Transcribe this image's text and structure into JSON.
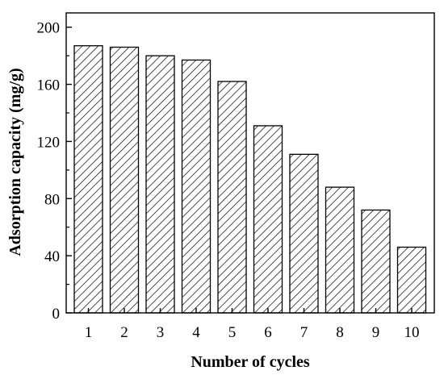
{
  "chart_data": {
    "type": "bar",
    "title": "",
    "xlabel": "Number of cycles",
    "ylabel": "Adsorption capacity (mg/g)",
    "categories": [
      "1",
      "2",
      "3",
      "4",
      "5",
      "6",
      "7",
      "8",
      "9",
      "10"
    ],
    "values": [
      187,
      186,
      180,
      177,
      162,
      131,
      111,
      88,
      72,
      46
    ],
    "ylim": [
      0,
      210
    ],
    "yticks": [
      0,
      40,
      80,
      120,
      160,
      200
    ],
    "grid": false,
    "legend": "none",
    "bar_fill": "hatched",
    "colors": {
      "bar_stroke": "#000000",
      "hatch": "#000000",
      "axis": "#000000",
      "background": "#ffffff"
    }
  }
}
